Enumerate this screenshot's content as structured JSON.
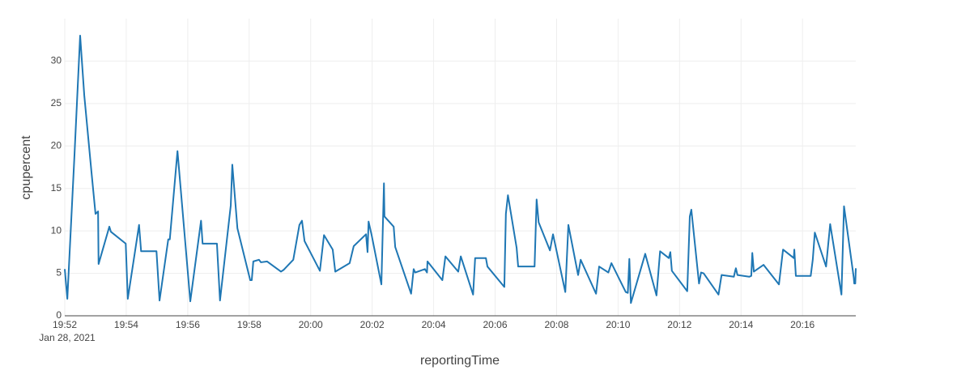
{
  "chart_data": {
    "type": "line",
    "x_label": "reportingTime",
    "y_label": "cpupercent",
    "x_date_label": "Jan 28, 2021",
    "xlim": [
      "19:52:00",
      "20:17:44"
    ],
    "xticks": [
      "19:52",
      "19:54",
      "19:56",
      "19:58",
      "20:00",
      "20:02",
      "20:04",
      "20:06",
      "20:08",
      "20:10",
      "20:12",
      "20:14",
      "20:16"
    ],
    "ylim": [
      0,
      35
    ],
    "yticks": [
      0,
      5,
      10,
      15,
      20,
      25,
      30
    ],
    "grid": true,
    "x": [
      "19:52:00",
      "19:52:05",
      "19:52:19",
      "19:52:30",
      "19:52:38",
      "19:52:52",
      "19:53:00",
      "19:53:05",
      "19:53:06",
      "19:53:27",
      "19:53:30",
      "19:53:59",
      "19:54:03",
      "19:54:25",
      "19:54:29",
      "19:54:59",
      "19:55:05",
      "19:55:22",
      "19:55:25",
      "19:55:40",
      "19:56:05",
      "19:56:26",
      "19:56:29",
      "19:56:57",
      "19:57:03",
      "19:57:24",
      "19:57:27",
      "19:57:37",
      "19:58:02",
      "19:58:05",
      "19:58:08",
      "19:58:19",
      "19:58:23",
      "19:58:35",
      "19:59:02",
      "19:59:07",
      "19:59:26",
      "19:59:38",
      "19:59:43",
      "19:59:48",
      "20:00:18",
      "20:00:26",
      "20:00:43",
      "20:00:48",
      "20:01:16",
      "20:01:24",
      "20:01:48",
      "20:01:51",
      "20:01:53",
      "20:01:59",
      "20:02:18",
      "20:02:23",
      "20:02:24",
      "20:02:42",
      "20:02:45",
      "20:03:16",
      "20:03:21",
      "20:03:24",
      "20:03:43",
      "20:03:47",
      "20:03:48",
      "20:04:17",
      "20:04:23",
      "20:04:48",
      "20:04:53",
      "20:05:17",
      "20:05:21",
      "20:05:42",
      "20:05:45",
      "20:06:18",
      "20:06:21",
      "20:06:25",
      "20:06:42",
      "20:06:45",
      "20:07:17",
      "20:07:21",
      "20:07:25",
      "20:07:47",
      "20:07:53",
      "20:08:17",
      "20:08:23",
      "20:08:42",
      "20:08:47",
      "20:09:17",
      "20:09:23",
      "20:09:41",
      "20:09:47",
      "20:10:15",
      "20:10:19",
      "20:10:22",
      "20:10:25",
      "20:10:53",
      "20:11:15",
      "20:11:22",
      "20:11:39",
      "20:11:42",
      "20:11:45",
      "20:12:15",
      "20:12:20",
      "20:12:23",
      "20:12:38",
      "20:12:42",
      "20:12:47",
      "20:13:16",
      "20:13:22",
      "20:13:46",
      "20:13:49",
      "20:13:50",
      "20:13:53",
      "20:14:16",
      "20:14:20",
      "20:14:22",
      "20:14:25",
      "20:14:44",
      "20:15:14",
      "20:15:22",
      "20:15:43",
      "20:15:44",
      "20:15:47",
      "20:16:16",
      "20:16:20",
      "20:16:24",
      "20:16:46",
      "20:16:54",
      "20:17:16",
      "20:17:21",
      "20:17:40",
      "20:17:41",
      "20:17:43",
      "20:17:44"
    ],
    "series": [
      {
        "name": "cpupercent",
        "color": "#1f77b4",
        "values": [
          5.5,
          2,
          19,
          33,
          26,
          17,
          12,
          12.3,
          6.1,
          10.5,
          9.9,
          8.5,
          2,
          10.7,
          7.6,
          7.6,
          1.8,
          9,
          9,
          19.4,
          1.7,
          11.2,
          8.5,
          8.5,
          1.8,
          13,
          17.8,
          10.3,
          4.2,
          4.2,
          6.4,
          6.6,
          6.3,
          6.4,
          5.2,
          5.4,
          6.6,
          10.7,
          11.2,
          8.8,
          5.3,
          9.5,
          7.8,
          5.2,
          6.2,
          8.2,
          9.6,
          7.5,
          11.1,
          9.5,
          3.7,
          15.6,
          11.7,
          10.5,
          8.1,
          2.6,
          5.5,
          5.1,
          5.5,
          5.1,
          6.4,
          4.2,
          7,
          5.2,
          7,
          2.5,
          6.8,
          6.8,
          5.8,
          3.4,
          12,
          14.2,
          8,
          5.8,
          5.8,
          13.7,
          11,
          7.7,
          9.6,
          2.8,
          10.7,
          4.8,
          6.6,
          2.6,
          5.8,
          5.1,
          6.2,
          2.8,
          2.7,
          6.7,
          1.5,
          7.3,
          2.4,
          7.6,
          6.8,
          7.5,
          5.3,
          2.9,
          11.7,
          12.5,
          3.8,
          5.1,
          5,
          2.5,
          4.8,
          4.6,
          5.4,
          5.6,
          4.8,
          4.6,
          4.7,
          7.4,
          5.2,
          6,
          3.7,
          7.8,
          6.8,
          7.8,
          4.7,
          4.7,
          6.6,
          9.8,
          5.8,
          10.8,
          2.5,
          12.9,
          4.5,
          3.8,
          3.8,
          5.6
        ]
      }
    ]
  }
}
